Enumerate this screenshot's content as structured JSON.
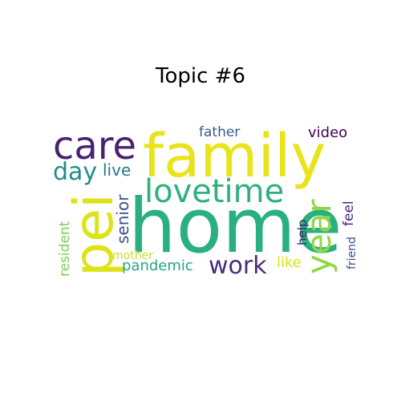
{
  "chart_data": {
    "type": "wordcloud",
    "title": "Topic #6",
    "words": [
      {
        "text": "family",
        "color": "#e8e419"
      },
      {
        "text": "home",
        "color": "#2ab07f"
      },
      {
        "text": "pei",
        "color": "#dde318"
      },
      {
        "text": "care",
        "color": "#482173"
      },
      {
        "text": "lovetime",
        "color": "#2db27d"
      },
      {
        "text": "year",
        "color": "#8fd744"
      },
      {
        "text": "day",
        "color": "#228c8d"
      },
      {
        "text": "work",
        "color": "#472d7b"
      },
      {
        "text": "senior",
        "color": "#3b518b"
      },
      {
        "text": "live",
        "color": "#2a788e"
      },
      {
        "text": "pandemic",
        "color": "#21a685"
      },
      {
        "text": "video",
        "color": "#440154"
      },
      {
        "text": "father",
        "color": "#38598c"
      },
      {
        "text": "resident",
        "color": "#7ad151"
      },
      {
        "text": "like",
        "color": "#dce319"
      },
      {
        "text": "feel",
        "color": "#482576"
      },
      {
        "text": "help",
        "color": "#481c6e"
      },
      {
        "text": "friend",
        "color": "#3e4c8a"
      },
      {
        "text": "mother",
        "color": "#cae11f"
      }
    ]
  }
}
